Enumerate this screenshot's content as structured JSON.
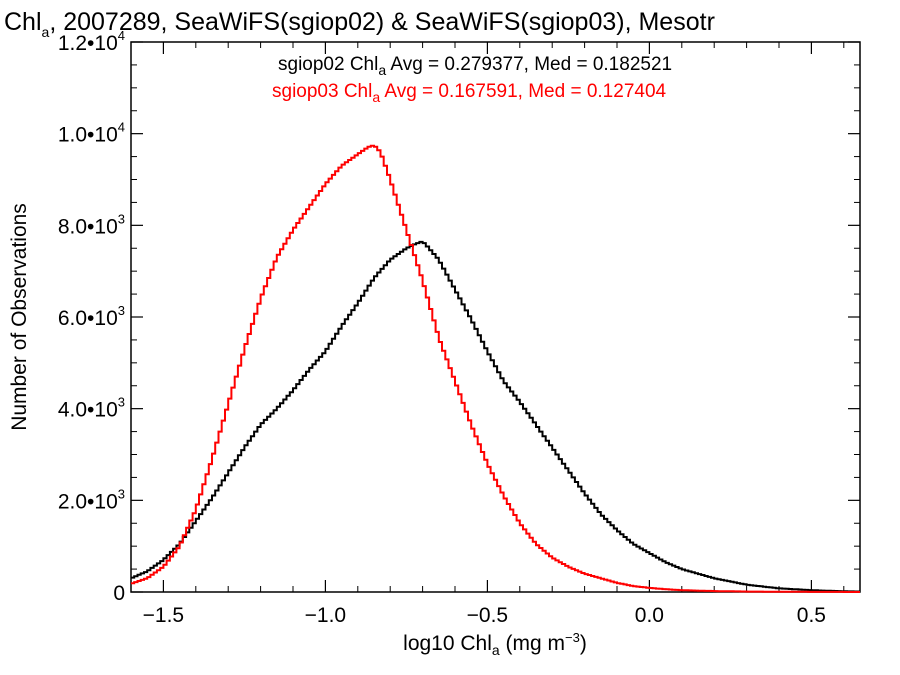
{
  "chart_data": {
    "type": "line",
    "step": true,
    "title": {
      "main": "Chl",
      "main_sub": "a",
      "rest": ", 2007289, SeaWiFS(sgiop02) & SeaWiFS(sgiop03), Mesotr"
    },
    "xlabel": {
      "pre": "log10 Chl",
      "sub": "a",
      "post": " (mg m",
      "sup": "−3",
      "end": ")"
    },
    "ylabel": "Number of Observations",
    "xlim": [
      -1.6,
      0.65
    ],
    "ylim": [
      0,
      12000
    ],
    "xticks": [
      {
        "value": -1.5,
        "label": "−1.5"
      },
      {
        "value": -1.0,
        "label": "−1.0"
      },
      {
        "value": -0.5,
        "label": "−0.5"
      },
      {
        "value": 0.0,
        "label": "0.0"
      },
      {
        "value": 0.5,
        "label": "0.5"
      }
    ],
    "yticks": [
      {
        "value": 0,
        "mant": "0",
        "exp": ""
      },
      {
        "value": 2000,
        "mant": "2.0•10",
        "exp": "3"
      },
      {
        "value": 4000,
        "mant": "4.0•10",
        "exp": "3"
      },
      {
        "value": 6000,
        "mant": "6.0•10",
        "exp": "3"
      },
      {
        "value": 8000,
        "mant": "8.0•10",
        "exp": "3"
      },
      {
        "value": 10000,
        "mant": "1.0•10",
        "exp": "4"
      },
      {
        "value": 12000,
        "mant": "1.2•10",
        "exp": "4"
      }
    ],
    "legend_position": "top-center",
    "series": [
      {
        "name": "sgiop02",
        "color": "#000000",
        "legend": {
          "pre": "sgiop02 Chl",
          "sub": "a",
          "post": " Avg = 0.279377, Med = 0.182521"
        },
        "x": [
          -1.6,
          -1.55,
          -1.5,
          -1.45,
          -1.4,
          -1.35,
          -1.3,
          -1.25,
          -1.2,
          -1.15,
          -1.1,
          -1.05,
          -1.0,
          -0.95,
          -0.9,
          -0.85,
          -0.8,
          -0.75,
          -0.72,
          -0.7,
          -0.68,
          -0.65,
          -0.6,
          -0.55,
          -0.5,
          -0.45,
          -0.4,
          -0.35,
          -0.3,
          -0.25,
          -0.2,
          -0.15,
          -0.1,
          -0.05,
          0.0,
          0.05,
          0.1,
          0.2,
          0.3,
          0.4,
          0.5,
          0.6,
          0.65
        ],
        "y": [
          300,
          450,
          700,
          1050,
          1550,
          2050,
          2600,
          3150,
          3650,
          4000,
          4400,
          4850,
          5250,
          5800,
          6300,
          6850,
          7250,
          7500,
          7600,
          7650,
          7500,
          7250,
          6600,
          5950,
          5250,
          4600,
          4150,
          3650,
          3150,
          2650,
          2150,
          1700,
          1350,
          1050,
          850,
          650,
          500,
          300,
          160,
          80,
          40,
          15,
          10
        ]
      },
      {
        "name": "sgiop03",
        "color": "#ff0000",
        "legend": {
          "pre": "sgiop03 Chl",
          "sub": "a",
          "post": " Avg = 0.167591, Med = 0.127404"
        },
        "x": [
          -1.6,
          -1.55,
          -1.5,
          -1.45,
          -1.4,
          -1.35,
          -1.3,
          -1.25,
          -1.2,
          -1.15,
          -1.1,
          -1.05,
          -1.0,
          -0.95,
          -0.9,
          -0.87,
          -0.85,
          -0.83,
          -0.8,
          -0.75,
          -0.7,
          -0.65,
          -0.6,
          -0.55,
          -0.5,
          -0.45,
          -0.4,
          -0.35,
          -0.3,
          -0.25,
          -0.2,
          -0.15,
          -0.1,
          -0.05,
          0.0,
          0.05,
          0.1,
          0.2,
          0.3,
          0.4,
          0.5,
          0.6,
          0.65
        ],
        "y": [
          180,
          300,
          550,
          1000,
          1800,
          2900,
          4100,
          5300,
          6400,
          7300,
          7900,
          8400,
          8900,
          9300,
          9550,
          9700,
          9750,
          9600,
          9000,
          7900,
          6800,
          5550,
          4600,
          3650,
          2800,
          2100,
          1500,
          1050,
          750,
          550,
          400,
          300,
          200,
          130,
          90,
          60,
          40,
          20,
          10,
          5,
          3,
          1,
          0
        ]
      }
    ]
  }
}
